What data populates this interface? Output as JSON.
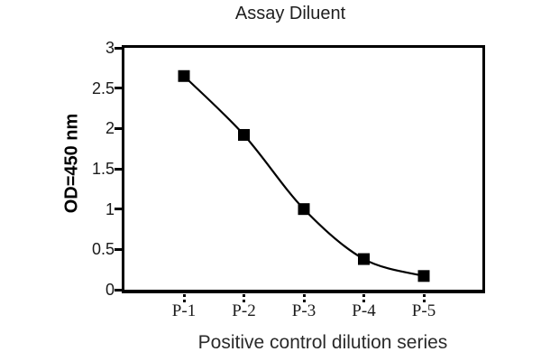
{
  "chart_data": {
    "type": "line",
    "title": "Assay Diluent",
    "xlabel": "Positive control dilution series",
    "ylabel": "OD=450 nm",
    "categories": [
      "P-1",
      "P-2",
      "P-3",
      "P-4",
      "P-5"
    ],
    "series": [
      {
        "name": "Positive control dilution series",
        "values": [
          2.65,
          1.92,
          1.0,
          0.38,
          0.17
        ]
      }
    ],
    "ylim": [
      0,
      3
    ],
    "yticks": [
      0,
      0.5,
      1,
      1.5,
      2,
      2.5,
      3
    ],
    "ytick_labels": [
      "0",
      "0.5",
      "1",
      "1.5",
      "2",
      "2.5",
      "3"
    ],
    "grid": false,
    "legend": "none",
    "line_style": "smooth",
    "marker": "filled-square",
    "line_color": "#000000",
    "marker_color": "#000000",
    "axis_color": "#000000",
    "background_color": "#ffffff"
  }
}
